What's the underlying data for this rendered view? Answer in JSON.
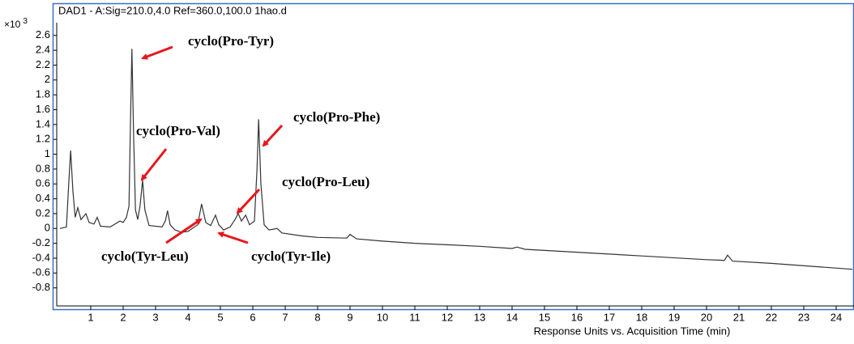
{
  "chart_data": {
    "type": "line",
    "title": "DAD1 - A:Sig=210.0,4.0   Ref=360.0,100.0 1hao.d",
    "y_unit": {
      "base": "×10",
      "exp": "3"
    },
    "x_label": "Response Units vs. Acquisition Time (min)",
    "color": "#333333",
    "x": [
      0.05,
      0.25,
      0.32,
      0.38,
      0.45,
      0.52,
      0.6,
      0.7,
      0.85,
      0.95,
      1.1,
      1.2,
      1.3,
      1.6,
      1.9,
      2.0,
      2.1,
      2.18,
      2.22,
      2.27,
      2.32,
      2.38,
      2.45,
      2.52,
      2.6,
      2.67,
      2.8,
      3.2,
      3.3,
      3.37,
      3.45,
      3.6,
      3.8,
      4.0,
      4.3,
      4.42,
      4.55,
      4.7,
      4.85,
      4.95,
      5.1,
      5.3,
      5.45,
      5.55,
      5.65,
      5.78,
      5.9,
      6.05,
      6.13,
      6.18,
      6.25,
      6.35,
      6.5,
      6.75,
      6.9,
      7.5,
      8.0,
      8.9,
      9.0,
      9.2,
      10,
      11,
      12,
      13,
      14,
      14.15,
      14.4,
      16,
      18,
      20,
      20.55,
      20.65,
      20.8,
      22,
      24.5
    ],
    "values": [
      0.0,
      0.02,
      0.6,
      1.05,
      0.5,
      0.15,
      0.28,
      0.12,
      0.2,
      0.08,
      0.06,
      0.15,
      0.03,
      0.02,
      0.1,
      0.08,
      0.15,
      0.3,
      1.3,
      2.42,
      1.3,
      0.25,
      0.12,
      0.3,
      0.65,
      0.25,
      0.04,
      0.02,
      0.1,
      0.24,
      0.05,
      -0.02,
      -0.05,
      -0.04,
      0.05,
      0.33,
      0.08,
      0.04,
      0.18,
      0.05,
      -0.02,
      0.02,
      0.12,
      0.2,
      0.1,
      0.18,
      0.05,
      0.1,
      0.8,
      1.47,
      0.6,
      0.05,
      -0.02,
      0.0,
      -0.06,
      -0.1,
      -0.12,
      -0.13,
      -0.08,
      -0.14,
      -0.17,
      -0.2,
      -0.22,
      -0.24,
      -0.27,
      -0.25,
      -0.28,
      -0.32,
      -0.37,
      -0.42,
      -0.43,
      -0.36,
      -0.44,
      -0.47,
      -0.55
    ],
    "xlim": [
      0,
      24.55
    ],
    "ylim": [
      -1.0,
      2.75
    ],
    "xticks": [
      1,
      2,
      3,
      4,
      5,
      6,
      7,
      8,
      9,
      10,
      11,
      12,
      13,
      14,
      15,
      16,
      17,
      18,
      19,
      20,
      21,
      22,
      23,
      24
    ],
    "yticks": [
      2.6,
      2.4,
      2.2,
      2,
      1.8,
      1.6,
      1.4,
      1.2,
      1,
      0.8,
      0.6,
      0.4,
      0.2,
      0,
      -0.2,
      -0.4,
      -0.6,
      -0.8
    ],
    "annotations": [
      "cyclo(Pro-Tyr)",
      "cyclo(Pro-Val)",
      "cyclo(Pro-Phe)",
      "cyclo(Pro-Leu)",
      "cyclo(Tyr-Leu)",
      "cyclo(Tyr-Ile)"
    ]
  }
}
